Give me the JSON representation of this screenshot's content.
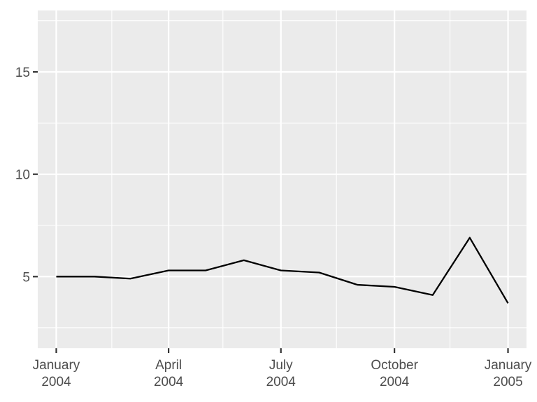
{
  "chart_data": {
    "type": "line",
    "title": "",
    "xlabel": "",
    "ylabel": "",
    "x_tick_labels": [
      {
        "value": "2004-01-01",
        "line1": "January",
        "line2": "2004"
      },
      {
        "value": "2004-04-01",
        "line1": "April",
        "line2": "2004"
      },
      {
        "value": "2004-07-01",
        "line1": "July",
        "line2": "2004"
      },
      {
        "value": "2004-10-01",
        "line1": "October",
        "line2": "2004"
      },
      {
        "value": "2005-01-01",
        "line1": "January",
        "line2": "2005"
      }
    ],
    "x_minor_breaks": [
      "2004-02-15",
      "2004-05-15",
      "2004-08-15",
      "2004-11-15"
    ],
    "y_ticks": [
      5,
      10,
      15
    ],
    "y_minor_breaks": [
      2.5,
      7.5,
      12.5,
      17.5
    ],
    "xlim": [
      "2003-12-17",
      "2005-01-16"
    ],
    "ylim": [
      1.5,
      18.0
    ],
    "grid": true,
    "colors": {
      "panel": "#ebebeb",
      "grid": "#ffffff",
      "line": "#000000",
      "tick": "#333333",
      "text": "#4d4d4d"
    },
    "series": [
      {
        "x": [
          "2004-01-01",
          "2004-02-01",
          "2004-03-01",
          "2004-04-01",
          "2004-05-01",
          "2004-06-01",
          "2004-07-01",
          "2004-08-01",
          "2004-09-01",
          "2004-10-01",
          "2004-11-01",
          "2004-12-01",
          "2005-01-01"
        ],
        "values": [
          5.0,
          5.0,
          4.9,
          5.3,
          5.3,
          5.8,
          5.3,
          5.2,
          4.6,
          4.5,
          4.1,
          6.9,
          3.7
        ]
      }
    ]
  }
}
